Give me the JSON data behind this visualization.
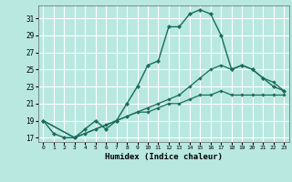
{
  "xlabel": "Humidex (Indice chaleur)",
  "background_color": "#b8e8e0",
  "grid_color": "#ffffff",
  "line_color": "#1a6b5a",
  "xlim": [
    -0.5,
    23.5
  ],
  "ylim": [
    16.5,
    32.5
  ],
  "xticks": [
    0,
    1,
    2,
    3,
    4,
    5,
    6,
    7,
    8,
    9,
    10,
    11,
    12,
    13,
    14,
    15,
    16,
    17,
    18,
    19,
    20,
    21,
    22,
    23
  ],
  "yticks": [
    17,
    19,
    21,
    23,
    25,
    27,
    29,
    31
  ],
  "line1_x": [
    0,
    1,
    2,
    3,
    4,
    5,
    6,
    7,
    8,
    9,
    10,
    11,
    12,
    13,
    14,
    15,
    16,
    17,
    18,
    19,
    20,
    21,
    22,
    23
  ],
  "line1_y": [
    19,
    17.5,
    17,
    17,
    18,
    19,
    18,
    19,
    21,
    23,
    25.5,
    26,
    30,
    30,
    31.5,
    32,
    31.5,
    29,
    25,
    25.5,
    25,
    24,
    23,
    22.5
  ],
  "line2_x": [
    0,
    3,
    4,
    5,
    6,
    7,
    8,
    9,
    10,
    11,
    12,
    13,
    14,
    15,
    16,
    17,
    18,
    19,
    20,
    21,
    22,
    23
  ],
  "line2_y": [
    19,
    17,
    17.5,
    18,
    18.5,
    19,
    19.5,
    20,
    20,
    20.5,
    21,
    21,
    21.5,
    22,
    22,
    22.5,
    22,
    22,
    22,
    22,
    22,
    22
  ],
  "line3_x": [
    0,
    3,
    4,
    5,
    6,
    7,
    8,
    9,
    10,
    11,
    12,
    13,
    14,
    15,
    16,
    17,
    18,
    19,
    20,
    21,
    22,
    23
  ],
  "line3_y": [
    19,
    17,
    17.5,
    18,
    18.5,
    19,
    19.5,
    20,
    20.5,
    21,
    21.5,
    22,
    23,
    24,
    25,
    25.5,
    25,
    25.5,
    25,
    24,
    23.5,
    22.5
  ]
}
